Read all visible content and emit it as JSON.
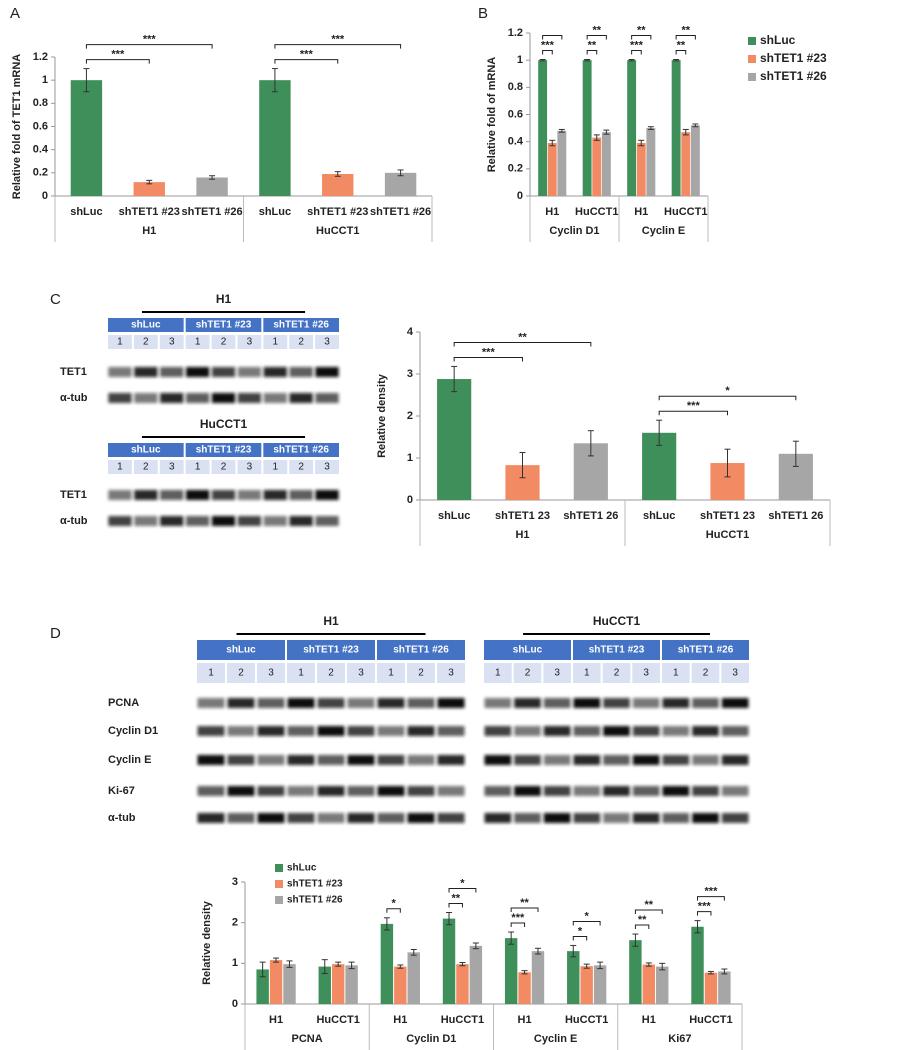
{
  "panels": [
    "A",
    "B",
    "C",
    "D"
  ],
  "chart_data": [
    {
      "type": "bar",
      "ylabel": "Relative fold of TET1 mRNA",
      "categories": [
        "shLuc",
        "shTET1 #23",
        "shTET1 #26",
        "shLuc",
        "shTET1 #23",
        "shTET1 #26"
      ],
      "groups": [
        "H1",
        "HuCCT1"
      ],
      "values": [
        1.0,
        0.12,
        0.16,
        1.0,
        0.19,
        0.2
      ],
      "errors": [
        0.1,
        0.015,
        0.015,
        0.1,
        0.02,
        0.025
      ],
      "colors": [
        "#3f8f5a",
        "#f28b63",
        "#a6a6a6",
        "#3f8f5a",
        "#f28b63",
        "#a6a6a6"
      ],
      "ylim": [
        0,
        1.2
      ],
      "yticks": [
        0,
        0.2,
        0.4,
        0.6,
        0.8,
        1,
        1.2
      ],
      "significance": [
        {
          "text": "***",
          "between": [
            0,
            1
          ]
        },
        {
          "text": "***",
          "between": [
            0,
            2
          ]
        },
        {
          "text": "***",
          "between": [
            3,
            4
          ]
        },
        {
          "text": "***",
          "between": [
            3,
            5
          ]
        }
      ]
    },
    {
      "type": "bar",
      "ylabel": "Relative fold of mRNA",
      "categories": [
        "H1",
        "HuCCT1",
        "H1",
        "HuCCT1"
      ],
      "groups": [
        "Cyclin D1",
        "Cyclin E"
      ],
      "series": [
        {
          "name": "shLuc",
          "color": "#3f8f5a",
          "values": [
            1,
            1,
            1,
            1
          ],
          "errors": [
            0.005,
            0.005,
            0.005,
            0.005
          ]
        },
        {
          "name": "shTET1 #23",
          "color": "#f28b63",
          "values": [
            0.39,
            0.43,
            0.39,
            0.47
          ],
          "errors": [
            0.02,
            0.02,
            0.02,
            0.02
          ]
        },
        {
          "name": "shTET1 #26",
          "color": "#a6a6a6",
          "values": [
            0.48,
            0.47,
            0.5,
            0.52
          ],
          "errors": [
            0.01,
            0.015,
            0.01,
            0.01
          ]
        }
      ],
      "legend": "right",
      "ylim": [
        0,
        1.2
      ],
      "yticks": [
        0,
        0.2,
        0.4,
        0.6,
        0.8,
        1,
        1.2
      ],
      "significance": [
        {
          "category": 0,
          "between": [
            0,
            1
          ],
          "text": "***"
        },
        {
          "category": 0,
          "between": [
            0,
            2
          ]
        },
        {
          "category": 1,
          "between": [
            0,
            1
          ],
          "text": "**"
        },
        {
          "category": 1,
          "between": [
            0,
            2
          ],
          "text": "**"
        },
        {
          "category": 2,
          "between": [
            0,
            1
          ],
          "text": "***"
        },
        {
          "category": 2,
          "between": [
            0,
            2
          ],
          "text": "**"
        },
        {
          "category": 3,
          "between": [
            0,
            1
          ],
          "text": "**"
        },
        {
          "category": 3,
          "between": [
            0,
            2
          ],
          "text": "**"
        }
      ]
    },
    {
      "type": "bar",
      "ylabel": "Relative density",
      "categories": [
        "shLuc",
        "shTET1 23",
        "shTET1 26",
        "shLuc",
        "shTET1 23",
        "shTET1 26"
      ],
      "groups": [
        "H1",
        "HuCCT1"
      ],
      "values": [
        2.88,
        0.83,
        1.35,
        1.6,
        0.88,
        1.1
      ],
      "errors": [
        0.3,
        0.3,
        0.3,
        0.3,
        0.33,
        0.3
      ],
      "colors": [
        "#3f8f5a",
        "#f28b63",
        "#a6a6a6",
        "#3f8f5a",
        "#f28b63",
        "#a6a6a6"
      ],
      "ylim": [
        0,
        4
      ],
      "yticks": [
        0,
        1,
        2,
        3,
        4
      ],
      "significance": [
        {
          "text": "***",
          "between": [
            0,
            1
          ]
        },
        {
          "text": "**",
          "between": [
            0,
            2
          ]
        },
        {
          "text": "***",
          "between": [
            3,
            4
          ]
        },
        {
          "text": "*",
          "between": [
            3,
            5
          ]
        }
      ]
    },
    {
      "type": "bar",
      "ylabel": "Relative density",
      "categories": [
        "H1",
        "HuCCT1",
        "H1",
        "HuCCT1",
        "H1",
        "HuCCT1",
        "H1",
        "HuCCT1"
      ],
      "groups": [
        "PCNA",
        "Cyclin D1",
        "Cyclin E",
        "Ki67"
      ],
      "series": [
        {
          "name": "shLuc",
          "color": "#3f8f5a",
          "values": [
            0.85,
            0.92,
            1.97,
            2.1,
            1.62,
            1.3,
            1.57,
            1.9
          ],
          "errors": [
            0.18,
            0.17,
            0.15,
            0.15,
            0.15,
            0.14,
            0.15,
            0.15
          ]
        },
        {
          "name": "shTET1 #23",
          "color": "#f28b63",
          "values": [
            1.08,
            0.98,
            0.92,
            0.98,
            0.78,
            0.93,
            0.97,
            0.77
          ],
          "errors": [
            0.05,
            0.05,
            0.04,
            0.04,
            0.04,
            0.05,
            0.04,
            0.03
          ]
        },
        {
          "name": "shTET1 #26",
          "color": "#a6a6a6",
          "values": [
            0.98,
            0.95,
            1.27,
            1.43,
            1.3,
            0.95,
            0.92,
            0.8
          ],
          "errors": [
            0.08,
            0.08,
            0.07,
            0.07,
            0.07,
            0.08,
            0.08,
            0.06
          ]
        }
      ],
      "legend": "top-left",
      "ylim": [
        0,
        3
      ],
      "yticks": [
        0,
        1,
        2,
        3
      ],
      "significance": [
        {
          "category": 2,
          "between": [
            0,
            1
          ],
          "text": "*"
        },
        {
          "category": 3,
          "between": [
            0,
            1
          ],
          "text": "**"
        },
        {
          "category": 3,
          "between": [
            0,
            2
          ],
          "text": "*"
        },
        {
          "category": 4,
          "between": [
            0,
            1
          ],
          "text": "***"
        },
        {
          "category": 4,
          "between": [
            0,
            2
          ],
          "text": "**"
        },
        {
          "category": 5,
          "between": [
            0,
            1
          ],
          "text": "*"
        },
        {
          "category": 5,
          "between": [
            0,
            2
          ],
          "text": "*"
        },
        {
          "category": 6,
          "between": [
            0,
            1
          ],
          "text": "**"
        },
        {
          "category": 6,
          "between": [
            0,
            2
          ],
          "text": "**"
        },
        {
          "category": 7,
          "between": [
            0,
            1
          ],
          "text": "***"
        },
        {
          "category": 7,
          "between": [
            0,
            2
          ],
          "text": "***"
        }
      ]
    }
  ],
  "blots": [
    {
      "blocks": [
        {
          "title": "H1",
          "groups": [
            "shLuc",
            "shTET1 #23",
            "shTET1 #26"
          ],
          "lanes": [
            "1",
            "2",
            "3"
          ]
        }
      ],
      "rows": [
        "TET1",
        "α-tub"
      ]
    },
    {
      "blocks": [
        {
          "title": "HuCCT1",
          "groups": [
            "shLuc",
            "shTET1 #23",
            "shTET1 #26"
          ],
          "lanes": [
            "1",
            "2",
            "3"
          ]
        }
      ],
      "rows": [
        "TET1",
        "α-tub"
      ]
    },
    {
      "blocks": [
        {
          "title": "H1",
          "groups": [
            "shLuc",
            "shTET1 #23",
            "shTET1 #26"
          ],
          "lanes": [
            "1",
            "2",
            "3"
          ]
        },
        {
          "title": "HuCCT1",
          "groups": [
            "shLuc",
            "shTET1 #23",
            "shTET1 #26"
          ],
          "lanes": [
            "1",
            "2",
            "3"
          ]
        }
      ],
      "rows": [
        "PCNA",
        "Cyclin D1",
        "Cyclin E",
        "Ki-67",
        "α-tub"
      ]
    }
  ]
}
